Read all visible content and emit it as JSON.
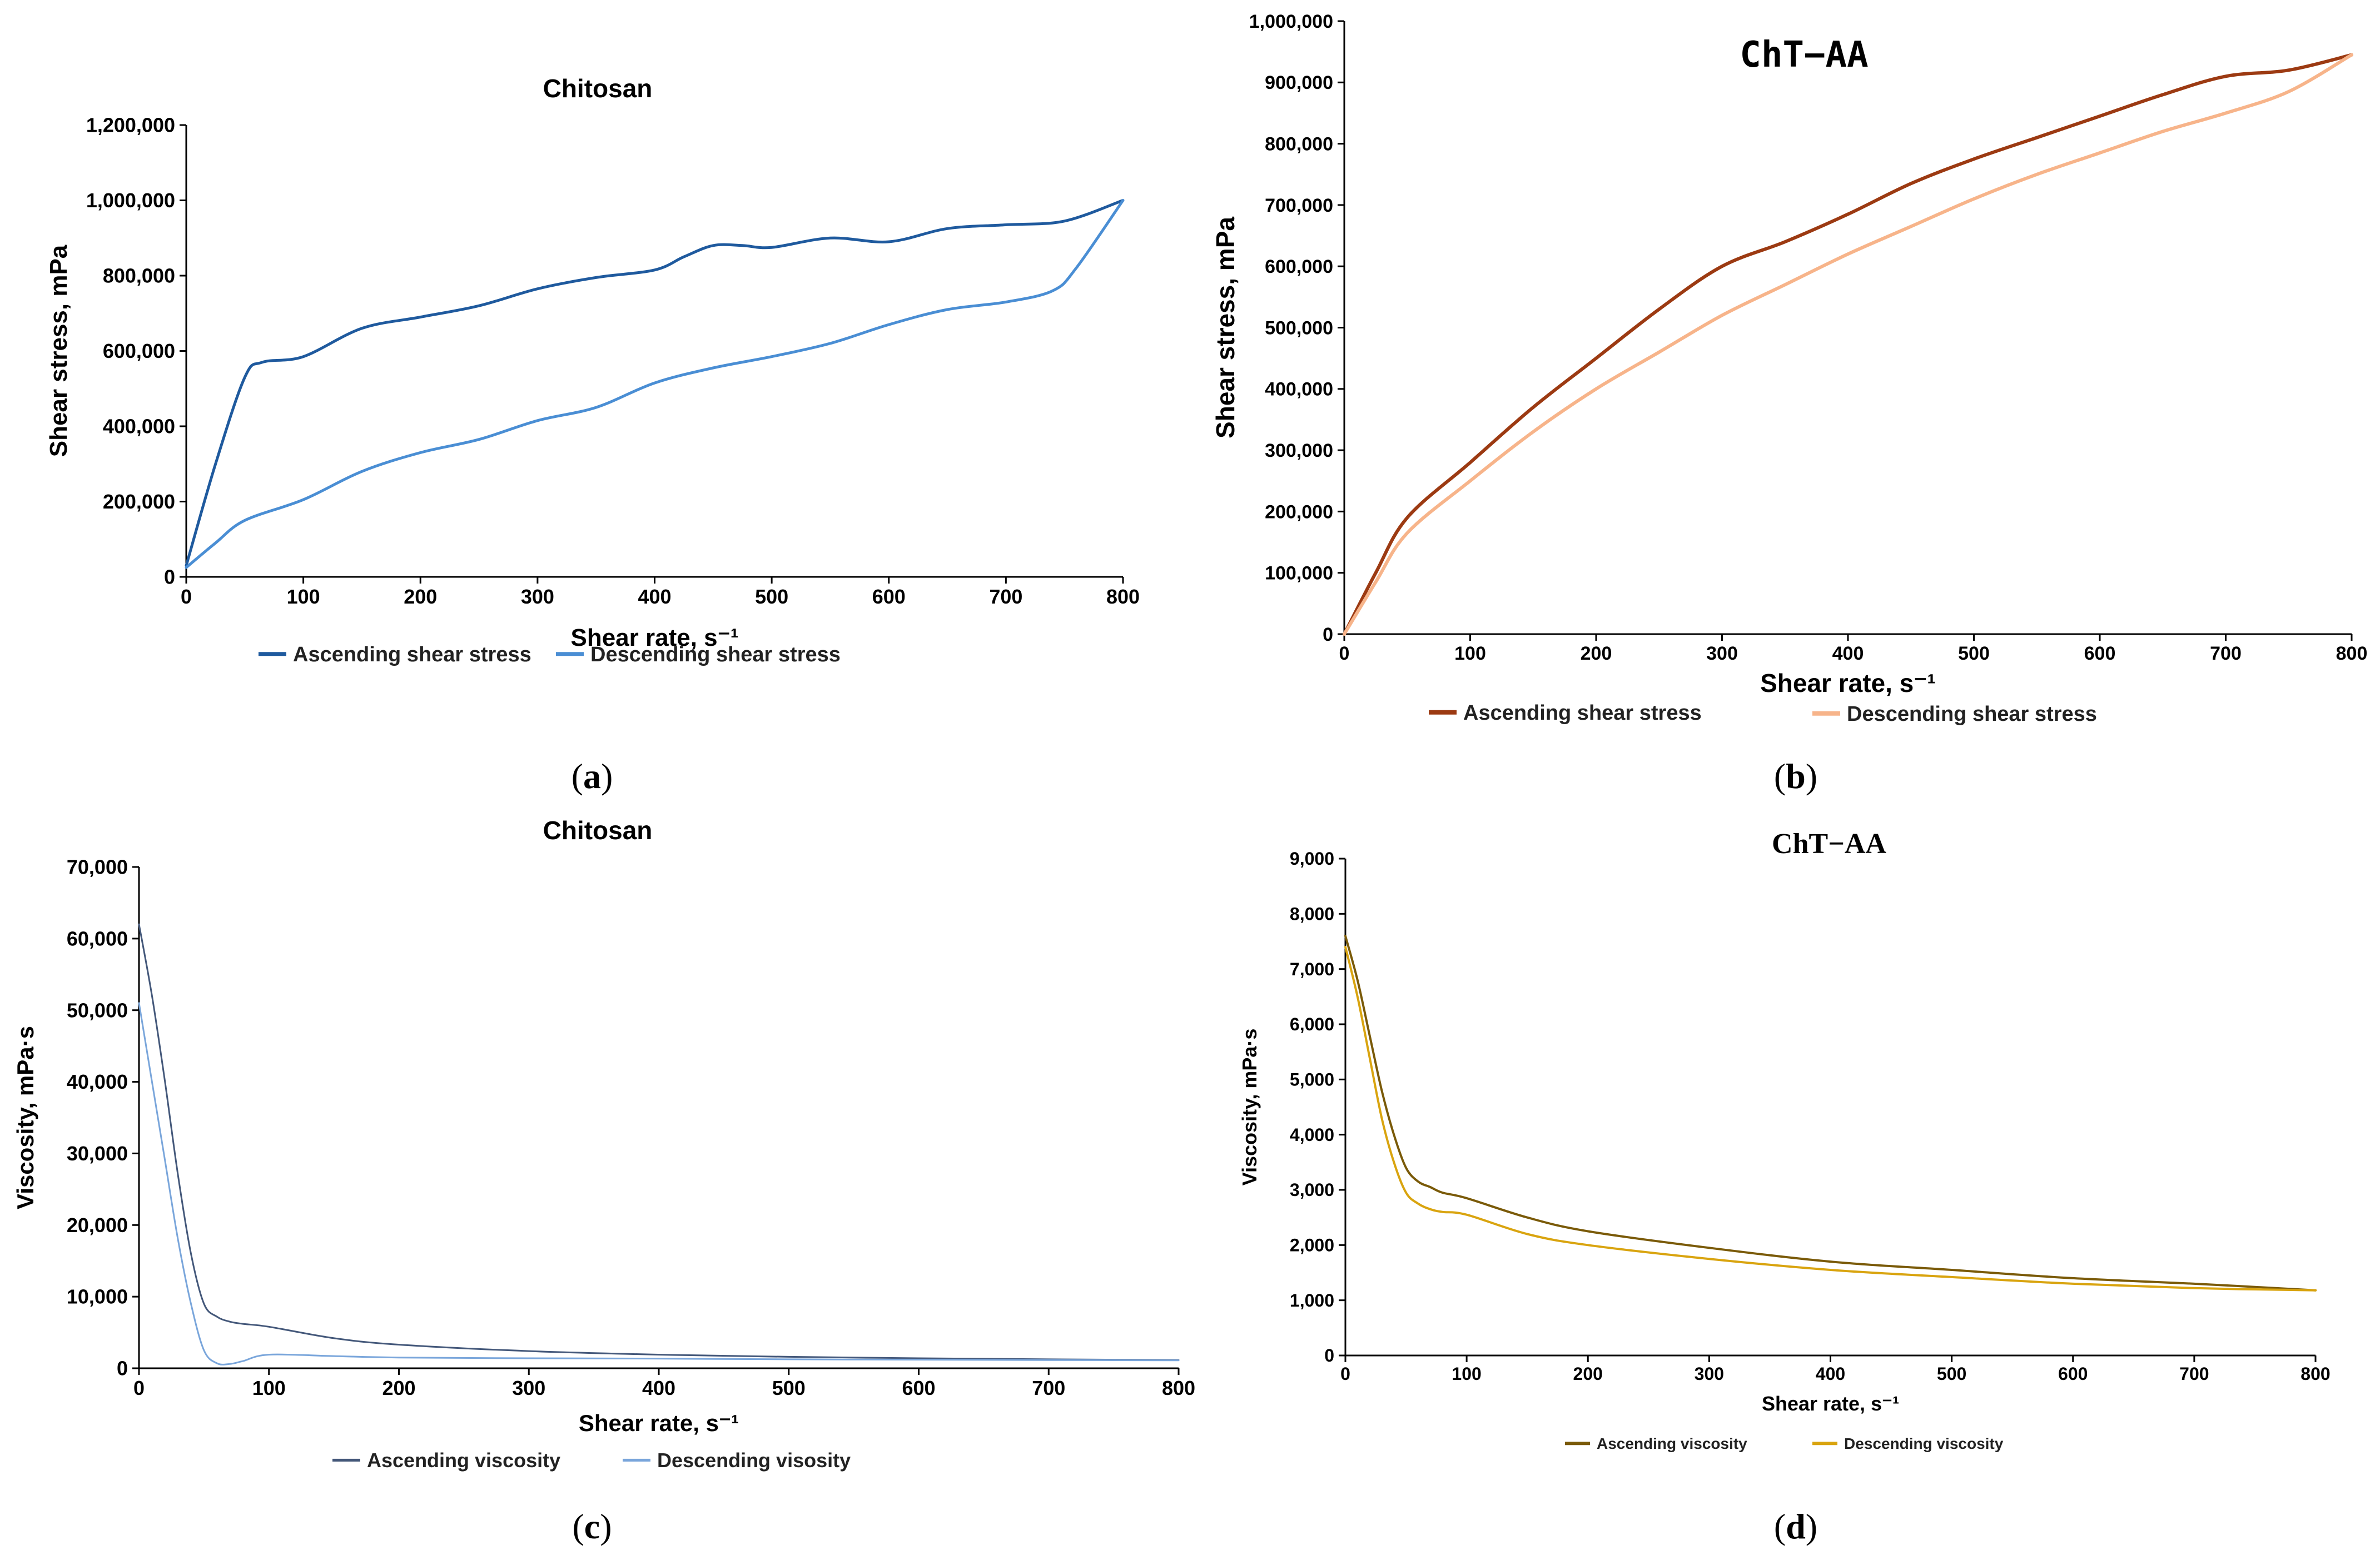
{
  "panels": [
    {
      "id": "a",
      "caption": "a",
      "chart_data": {
        "type": "line",
        "title": "Chitosan",
        "xlabel": "Shear rate, s⁻¹",
        "ylabel": "Shear stress, mPa",
        "xlim": [
          0,
          800
        ],
        "ylim": [
          0,
          1200000
        ],
        "xticks": [
          "0",
          "100",
          "200",
          "300",
          "400",
          "500",
          "600",
          "700",
          "800"
        ],
        "yticks": [
          "0",
          "200,000",
          "400,000",
          "600,000",
          "800,000",
          "1,000,000",
          "1,200,000"
        ],
        "legend_position": "bottom",
        "series": [
          {
            "name": "Ascending shear stress",
            "color": "#1f5a9e",
            "x": [
              0,
              25,
              50,
              65,
              100,
              150,
              200,
              250,
              300,
              350,
              400,
              425,
              450,
              475,
              500,
              550,
              600,
              650,
              700,
              750,
              800
            ],
            "y": [
              30000,
              300000,
              530000,
              570000,
              585000,
              660000,
              690000,
              720000,
              765000,
              795000,
              815000,
              850000,
              880000,
              880000,
              875000,
              900000,
              890000,
              925000,
              935000,
              945000,
              1000000
            ]
          },
          {
            "name": "Descending shear stress",
            "color": "#4a8ed4",
            "x": [
              0,
              25,
              50,
              100,
              150,
              200,
              250,
              300,
              350,
              400,
              450,
              500,
              550,
              600,
              650,
              700,
              740,
              760,
              800
            ],
            "y": [
              25000,
              90000,
              150000,
              205000,
              280000,
              330000,
              365000,
              415000,
              450000,
              515000,
              555000,
              585000,
              620000,
              670000,
              710000,
              730000,
              760000,
              820000,
              1000000
            ]
          }
        ]
      }
    },
    {
      "id": "b",
      "caption": "b",
      "chart_data": {
        "type": "line",
        "title": "ChT−AA",
        "xlabel": "Shear rate, s⁻¹",
        "ylabel": "Shear stress, mPa",
        "xlim": [
          0,
          800
        ],
        "ylim": [
          0,
          1000000
        ],
        "xticks": [
          "0",
          "100",
          "200",
          "300",
          "400",
          "500",
          "600",
          "700",
          "800"
        ],
        "yticks": [
          "0",
          "100,000",
          "200,000",
          "300,000",
          "400,000",
          "500,000",
          "600,000",
          "700,000",
          "800,000",
          "900,000",
          "1,000,000"
        ],
        "legend_position": "bottom",
        "series": [
          {
            "name": "Ascending shear stress",
            "color": "#9c3a12",
            "x": [
              0,
              25,
              50,
              100,
              150,
              200,
              250,
              300,
              350,
              400,
              450,
              500,
              550,
              600,
              650,
              700,
              750,
              800
            ],
            "y": [
              0,
              100000,
              190000,
              280000,
              370000,
              450000,
              530000,
              600000,
              640000,
              685000,
              735000,
              775000,
              810000,
              845000,
              880000,
              910000,
              920000,
              945000
            ]
          },
          {
            "name": "Descending shear stress",
            "color": "#f7b48a",
            "x": [
              0,
              25,
              50,
              100,
              150,
              200,
              250,
              300,
              350,
              400,
              450,
              500,
              550,
              600,
              650,
              700,
              750,
              800
            ],
            "y": [
              0,
              85000,
              165000,
              250000,
              330000,
              400000,
              460000,
              520000,
              570000,
              620000,
              665000,
              710000,
              750000,
              785000,
              820000,
              850000,
              885000,
              945000
            ]
          }
        ]
      }
    },
    {
      "id": "c",
      "caption": "c",
      "chart_data": {
        "type": "line",
        "title": "Chitosan",
        "xlabel": "Shear rate, s⁻¹",
        "ylabel": "Viscosity, mPa·s",
        "xlim": [
          0,
          800
        ],
        "ylim": [
          0,
          70000
        ],
        "xticks": [
          "0",
          "100",
          "200",
          "300",
          "400",
          "500",
          "600",
          "700",
          "800"
        ],
        "yticks": [
          "0",
          "10,000",
          "20,000",
          "30,000",
          "40,000",
          "50,000",
          "60,000",
          "70,000"
        ],
        "legend_position": "bottom",
        "series": [
          {
            "name": "Ascending viscosity",
            "color": "#44587a",
            "x": [
              0,
              10,
              20,
              30,
              40,
              50,
              60,
              70,
              80,
              100,
              150,
              200,
              300,
              400,
              500,
              600,
              700,
              800
            ],
            "y": [
              62000,
              52000,
              40000,
              27000,
              16000,
              9000,
              7200,
              6500,
              6200,
              5800,
              4200,
              3300,
              2400,
              1900,
              1600,
              1400,
              1250,
              1150
            ]
          },
          {
            "name": "Descending visosity",
            "color": "#7aa6db",
            "x": [
              0,
              10,
              20,
              30,
              40,
              50,
              60,
              70,
              80,
              100,
              150,
              200,
              300,
              400,
              500,
              600,
              700,
              800
            ],
            "y": [
              51000,
              40000,
              29000,
              18000,
              9000,
              2500,
              700,
              600,
              1000,
              1900,
              1700,
              1500,
              1400,
              1350,
              1250,
              1200,
              1150,
              1100
            ]
          }
        ]
      }
    },
    {
      "id": "d",
      "caption": "d",
      "chart_data": {
        "type": "line",
        "title": "ChT−AA",
        "xlabel": "Shear rate, s⁻¹",
        "ylabel": "Viscosity, mPa·s",
        "xlim": [
          0,
          800
        ],
        "ylim": [
          0,
          9000
        ],
        "xticks": [
          "0",
          "100",
          "200",
          "300",
          "400",
          "500",
          "600",
          "700",
          "800"
        ],
        "yticks": [
          "0",
          "1,000",
          "2,000",
          "3,000",
          "4,000",
          "5,000",
          "6,000",
          "7,000",
          "8,000",
          "9,000"
        ],
        "legend_position": "bottom",
        "series": [
          {
            "name": "Ascending viscosity",
            "color": "#7a5a08",
            "x": [
              0,
              10,
              20,
              30,
              40,
              50,
              60,
              70,
              80,
              100,
              150,
              200,
              300,
              400,
              500,
              600,
              700,
              800
            ],
            "y": [
              7600,
              6800,
              5800,
              4800,
              4000,
              3400,
              3150,
              3050,
              2950,
              2850,
              2500,
              2250,
              1950,
              1700,
              1550,
              1400,
              1300,
              1180
            ]
          },
          {
            "name": "Descending viscosity",
            "color": "#d9a40f",
            "x": [
              0,
              10,
              20,
              30,
              40,
              50,
              60,
              70,
              80,
              100,
              150,
              200,
              300,
              400,
              500,
              600,
              700,
              800
            ],
            "y": [
              7400,
              6500,
              5400,
              4300,
              3500,
              2950,
              2750,
              2650,
              2600,
              2550,
              2200,
              2000,
              1750,
              1550,
              1420,
              1300,
              1220,
              1180
            ]
          }
        ]
      }
    }
  ]
}
